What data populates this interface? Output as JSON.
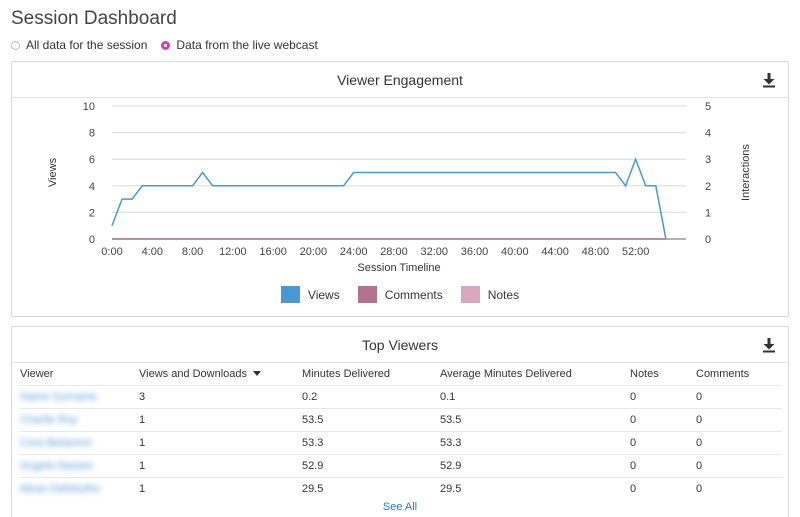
{
  "page_title": "Session Dashboard",
  "data_source": {
    "options": [
      {
        "label": "All data for the session",
        "checked": false
      },
      {
        "label": "Data from the live webcast",
        "checked": true
      }
    ]
  },
  "engagement": {
    "title": "Viewer Engagement",
    "download_icon": "download-icon",
    "chart_data": {
      "type": "line",
      "title": "Viewer Engagement",
      "xlabel": "Session Timeline",
      "ylabel": "Views",
      "y2label": "Interactions",
      "ylim": [
        0,
        10
      ],
      "y2lim": [
        0,
        5
      ],
      "yticks": [
        "0",
        "2",
        "4",
        "6",
        "8",
        "10"
      ],
      "y2ticks": [
        "0",
        "1",
        "2",
        "3",
        "4",
        "5"
      ],
      "xlim": [
        0,
        57
      ],
      "xticks": [
        "0:00",
        "4:00",
        "8:00",
        "12:00",
        "16:00",
        "20:00",
        "24:00",
        "28:00",
        "32:00",
        "36:00",
        "40:00",
        "44:00",
        "48:00",
        "52:00"
      ],
      "grid": true,
      "legend_position": "bottom",
      "series": [
        {
          "name": "Views",
          "color": "#4a98d3",
          "points": [
            [
              0,
              1
            ],
            [
              0.5,
              2
            ],
            [
              1,
              3
            ],
            [
              2,
              3
            ],
            [
              3,
              4
            ],
            [
              8,
              4
            ],
            [
              9,
              5
            ],
            [
              10,
              4
            ],
            [
              23,
              4
            ],
            [
              24,
              5
            ],
            [
              50,
              5
            ],
            [
              51,
              4
            ],
            [
              52,
              6
            ],
            [
              53,
              4
            ],
            [
              54,
              4
            ],
            [
              55,
              0
            ]
          ]
        },
        {
          "name": "Comments",
          "color": "#b5728f",
          "points": [
            [
              0,
              0
            ],
            [
              55,
              0
            ]
          ]
        },
        {
          "name": "Notes",
          "color": "#d9a8c0",
          "points": [
            [
              0,
              0
            ],
            [
              55,
              0
            ]
          ]
        }
      ]
    }
  },
  "top_viewers": {
    "title": "Top Viewers",
    "download_icon": "download-icon",
    "columns": [
      "Viewer",
      "Views and Downloads",
      "Minutes Delivered",
      "Average Minutes Delivered",
      "Notes",
      "Comments"
    ],
    "rows": [
      {
        "viewer": "Name Surname",
        "views": "3",
        "minutes": "0.2",
        "avg": "0.1",
        "notes": "0",
        "comments": "0"
      },
      {
        "viewer": "Charlie Roy",
        "views": "1",
        "minutes": "53.5",
        "avg": "53.5",
        "notes": "0",
        "comments": "0"
      },
      {
        "viewer": "Cora Belasmin",
        "views": "1",
        "minutes": "53.3",
        "avg": "53.3",
        "notes": "0",
        "comments": "0"
      },
      {
        "viewer": "Angela Nasare",
        "views": "1",
        "minutes": "52.9",
        "avg": "52.9",
        "notes": "0",
        "comments": "0"
      },
      {
        "viewer": "Mean Defoliuthe",
        "views": "1",
        "minutes": "29.5",
        "avg": "29.5",
        "notes": "0",
        "comments": "0"
      }
    ],
    "see_all_label": "See All"
  }
}
